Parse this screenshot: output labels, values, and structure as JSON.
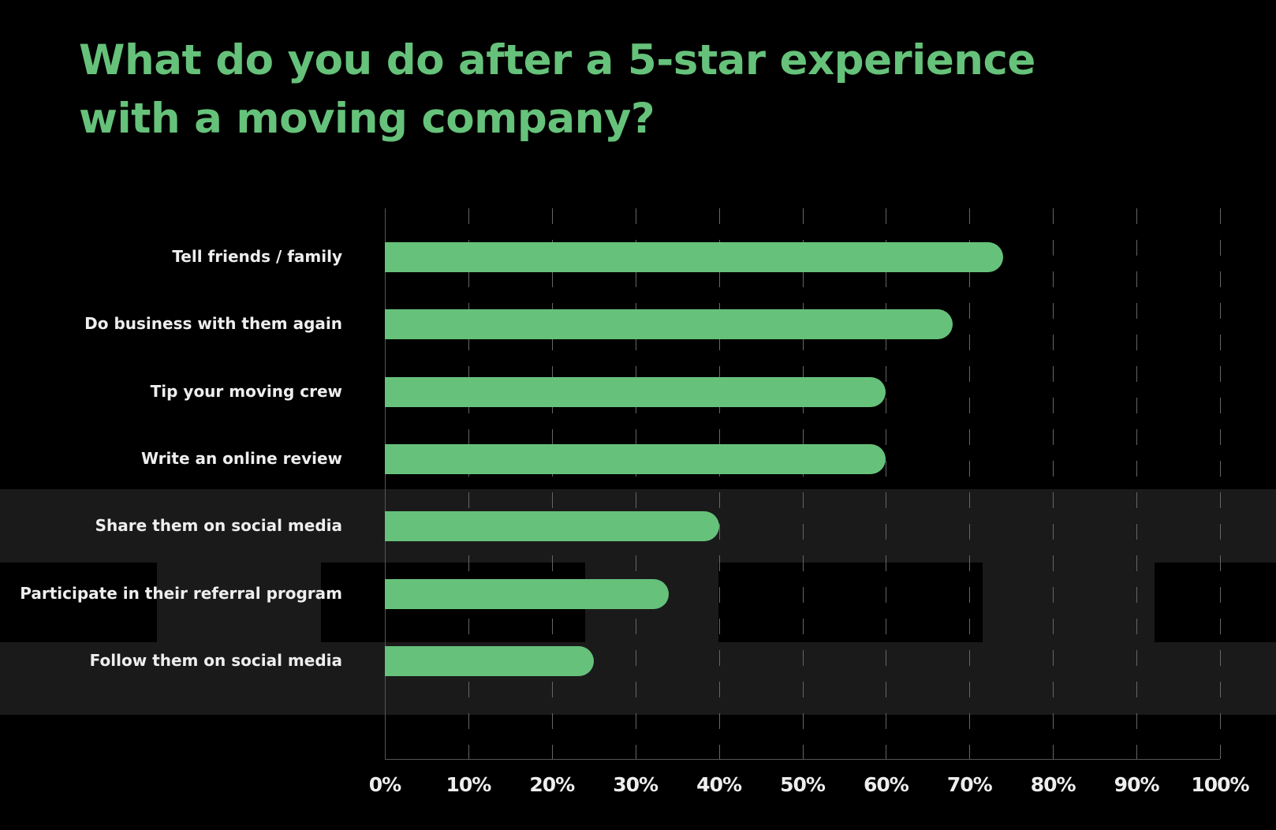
{
  "title": "What do you do after a 5-star experience with a moving company?",
  "colors": {
    "background": "#000000",
    "bar": "#66c27a",
    "title": "#66c27a",
    "band": "#1b1a1b",
    "text": "#eeeeee"
  },
  "axis": {
    "ticks": [
      "0%",
      "10%",
      "20%",
      "30%",
      "40%",
      "50%",
      "60%",
      "70%",
      "80%",
      "90%",
      "100%"
    ]
  },
  "categories": [
    {
      "label": "Tell friends / family",
      "value": 74
    },
    {
      "label": "Do business with them again",
      "value": 68
    },
    {
      "label": "Tip your moving crew",
      "value": 60
    },
    {
      "label": "Write an online review",
      "value": 60
    },
    {
      "label": "Share them on social media",
      "value": 40
    },
    {
      "label": "Participate in their referral program",
      "value": 34
    },
    {
      "label": "Follow them on social media",
      "value": 25
    }
  ],
  "chart_data": {
    "type": "bar",
    "orientation": "horizontal",
    "title": "What do you do after a 5-star experience with a moving company?",
    "categories": [
      "Tell friends / family",
      "Do business with them again",
      "Tip your moving crew",
      "Write an online review",
      "Share them on social media",
      "Participate in their referral program",
      "Follow them on social media"
    ],
    "values": [
      74,
      68,
      60,
      60,
      40,
      34,
      25
    ],
    "xlabel": "",
    "ylabel": "",
    "xlim": [
      0,
      100
    ],
    "x_ticks": [
      "0%",
      "10%",
      "20%",
      "30%",
      "40%",
      "50%",
      "60%",
      "70%",
      "80%",
      "90%",
      "100%"
    ],
    "grid": "vertical dashed",
    "legend": null
  }
}
